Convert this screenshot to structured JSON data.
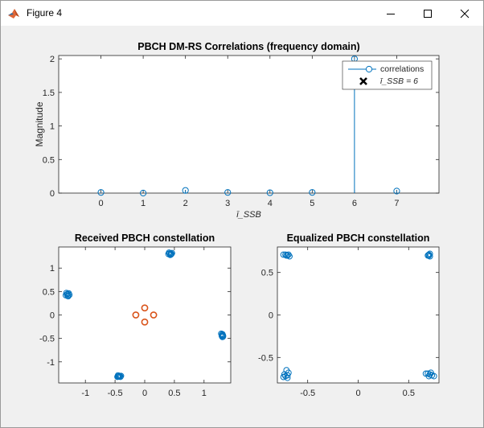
{
  "window": {
    "title": "Figure 4"
  },
  "icons": {
    "app": "matlab-icon",
    "minimize": "minimize-icon",
    "maximize": "maximize-icon",
    "close": "close-icon"
  },
  "colors": {
    "series_blue": "#0072BD",
    "series_orange": "#D95319",
    "marker_black": "#000000"
  },
  "chart_data": [
    {
      "type": "stem",
      "title": "PBCH DM-RS Correlations (frequency domain)",
      "xlabel": "ī_SSB",
      "ylabel": "Magnitude",
      "xlim": [
        -1,
        8
      ],
      "ylim": [
        0,
        2.05
      ],
      "xticks": [
        "0",
        "1",
        "2",
        "3",
        "4",
        "5",
        "6",
        "7"
      ],
      "yticks": [
        "0",
        "0.5",
        "1",
        "1.5",
        "2"
      ],
      "x": [
        0,
        1,
        2,
        3,
        4,
        5,
        6,
        7
      ],
      "values": [
        0.01,
        0.0,
        0.04,
        0.01,
        0.005,
        0.01,
        2.0,
        0.03
      ],
      "legend": {
        "placement": "top-right",
        "entries": [
          "correlations",
          "ī_SSB = 6"
        ]
      },
      "grid": false
    },
    {
      "type": "scatter",
      "title": "Received PBCH constellation",
      "xlim": [
        -1.45,
        1.45
      ],
      "ylim": [
        -1.45,
        1.45
      ],
      "xticks": [
        "-1",
        "-0.5",
        "0",
        "0.5",
        "1"
      ],
      "yticks": [
        "-1",
        "-0.5",
        "0",
        "0.5",
        "1"
      ],
      "series": [
        {
          "points": [
            [
              -1.31,
              0.44
            ],
            [
              -1.28,
              0.46
            ],
            [
              -1.33,
              0.42
            ],
            [
              -1.29,
              0.4
            ],
            [
              -1.3,
              0.45
            ],
            [
              -1.32,
              0.47
            ],
            [
              -1.27,
              0.43
            ],
            [
              -1.3,
              0.41
            ],
            [
              0.42,
              1.31
            ],
            [
              0.44,
              1.29
            ],
            [
              0.4,
              1.3
            ],
            [
              0.46,
              1.32
            ],
            [
              0.43,
              1.28
            ],
            [
              0.45,
              1.3
            ],
            [
              0.41,
              1.33
            ],
            [
              0.44,
              1.31
            ],
            [
              1.31,
              -0.42
            ],
            [
              1.3,
              -0.45
            ],
            [
              1.32,
              -0.44
            ],
            [
              1.29,
              -0.4
            ],
            [
              1.31,
              -0.47
            ],
            [
              1.3,
              -0.43
            ],
            [
              1.32,
              -0.46
            ],
            [
              1.31,
              -0.41
            ],
            [
              -0.44,
              -1.31
            ],
            [
              -0.42,
              -1.3
            ],
            [
              -0.46,
              -1.32
            ],
            [
              -0.4,
              -1.3
            ],
            [
              -0.45,
              -1.29
            ],
            [
              -0.43,
              -1.31
            ],
            [
              -0.41,
              -1.32
            ],
            [
              -0.45,
              -1.31
            ]
          ]
        },
        {
          "points": [
            [
              0,
              0.15
            ],
            [
              0,
              -0.15
            ],
            [
              0.15,
              0
            ],
            [
              -0.15,
              0
            ]
          ]
        }
      ]
    },
    {
      "type": "scatter",
      "title": "Equalized PBCH constellation",
      "xlim": [
        -0.8,
        0.8
      ],
      "ylim": [
        -0.8,
        0.8
      ],
      "xticks": [
        "-0.5",
        "0",
        "0.5"
      ],
      "yticks": [
        "-0.5",
        "0",
        "0.5"
      ],
      "series": [
        {
          "points": [
            [
              -0.72,
              0.71
            ],
            [
              -0.7,
              0.7
            ],
            [
              -0.68,
              0.69
            ],
            [
              -0.74,
              0.71
            ],
            [
              -0.71,
              0.7
            ],
            [
              -0.69,
              0.71
            ],
            [
              0.7,
              0.71
            ],
            [
              0.71,
              0.69
            ],
            [
              0.69,
              0.7
            ],
            [
              0.71,
              0.72
            ],
            [
              0.7,
              0.7
            ],
            [
              0.69,
              -0.69
            ],
            [
              0.71,
              -0.7
            ],
            [
              0.73,
              -0.71
            ],
            [
              0.67,
              -0.69
            ],
            [
              0.75,
              -0.72
            ],
            [
              0.7,
              -0.72
            ],
            [
              0.72,
              -0.68
            ],
            [
              -0.72,
              -0.72
            ],
            [
              -0.7,
              -0.71
            ],
            [
              -0.74,
              -0.73
            ],
            [
              -0.69,
              -0.68
            ],
            [
              -0.71,
              -0.65
            ],
            [
              -0.73,
              -0.7
            ],
            [
              -0.7,
              -0.74
            ]
          ]
        }
      ]
    }
  ]
}
